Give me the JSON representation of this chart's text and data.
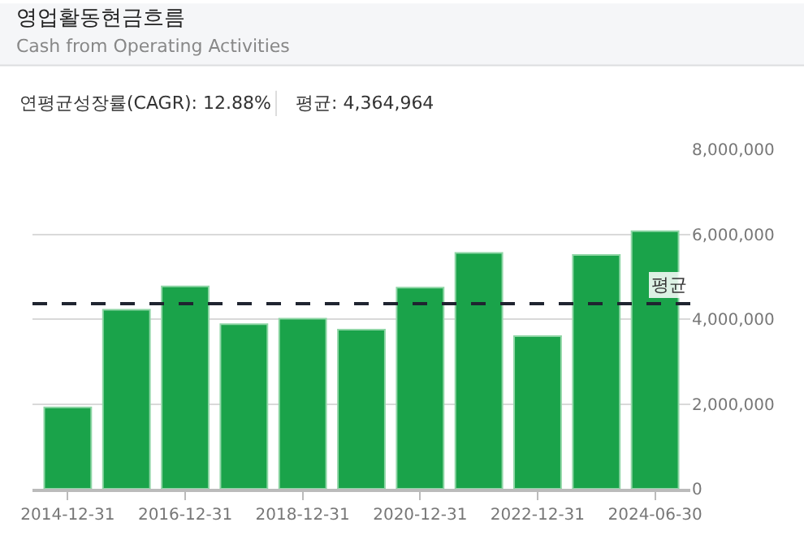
{
  "chart_data": {
    "type": "bar",
    "title": "영업활동현금흐름",
    "subtitle": "Cash from Operating Activities",
    "annotations": [
      "연평균성장률(CAGR): 12.88%",
      "평균: 4,364,964"
    ],
    "categories": [
      "2014-12-31",
      null,
      "2016-12-31",
      null,
      "2018-12-31",
      null,
      "2020-12-31",
      null,
      "2022-12-31",
      null,
      "2024-06-30"
    ],
    "values": [
      1920000,
      4220000,
      4770000,
      3880000,
      4010000,
      3750000,
      4740000,
      5560000,
      3600000,
      5510000,
      6070000
    ],
    "color": "#1aa34a",
    "ylim": [
      0,
      8000000
    ],
    "yticks": [
      {
        "value": 0,
        "label": "0"
      },
      {
        "value": 2000000,
        "label": "2,000,000"
      },
      {
        "value": 4000000,
        "label": "4,000,000"
      },
      {
        "value": 6000000,
        "label": "6,000,000"
      },
      {
        "value": 8000000,
        "label": "8,000,000"
      }
    ],
    "ref_lines": [
      {
        "axis": "y",
        "value": 4364964,
        "label": "평균",
        "color": "#1f2430",
        "line_style": "dashed"
      }
    ],
    "grid": "y"
  }
}
